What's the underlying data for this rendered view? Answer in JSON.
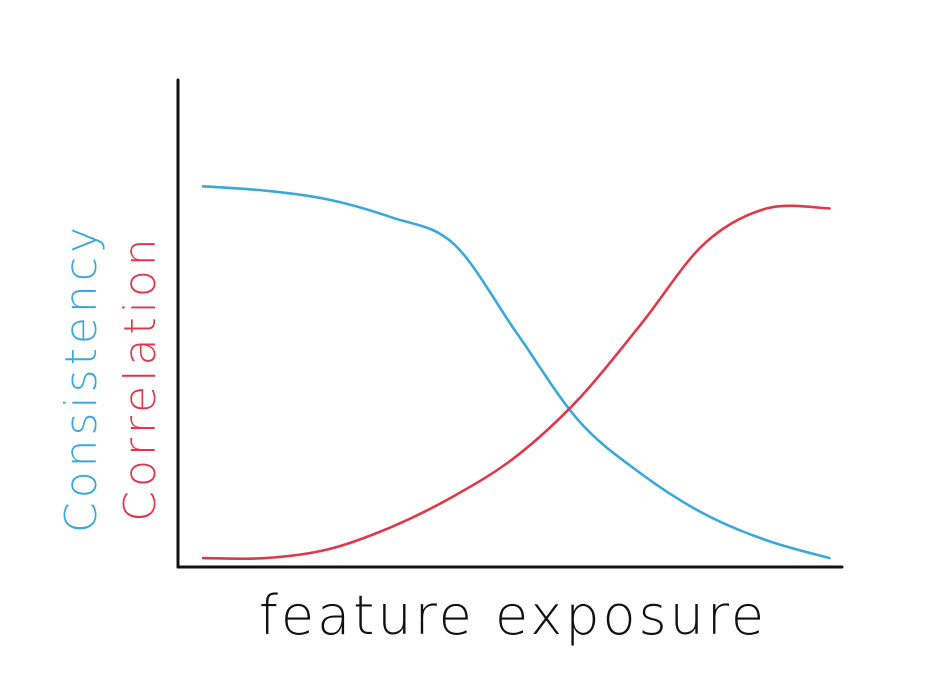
{
  "chart_data": {
    "type": "line",
    "title": "",
    "xlabel": "feature exposure",
    "ylabels": [
      "Consistency",
      "Correlation"
    ],
    "x": [
      0,
      0.1,
      0.2,
      0.3,
      0.4,
      0.5,
      0.6,
      0.7,
      0.8,
      0.9,
      1.0
    ],
    "xlim": [
      -0.04,
      1.02
    ],
    "ylim": [
      0,
      1.1
    ],
    "grid": false,
    "legend": "none",
    "series": [
      {
        "name": "Consistency",
        "color": "#3aa8da",
        "values": [
          0.86,
          0.85,
          0.83,
          0.79,
          0.73,
          0.53,
          0.33,
          0.21,
          0.12,
          0.06,
          0.02
        ]
      },
      {
        "name": "Correlation",
        "color": "#e0384b",
        "values": [
          0.02,
          0.02,
          0.04,
          0.09,
          0.16,
          0.25,
          0.38,
          0.55,
          0.73,
          0.81,
          0.81
        ]
      }
    ]
  },
  "axis_color": "#111111",
  "label_colors": {
    "xlabel": "#111111",
    "consistency": "#3aa8da",
    "correlation": "#e0384b"
  }
}
